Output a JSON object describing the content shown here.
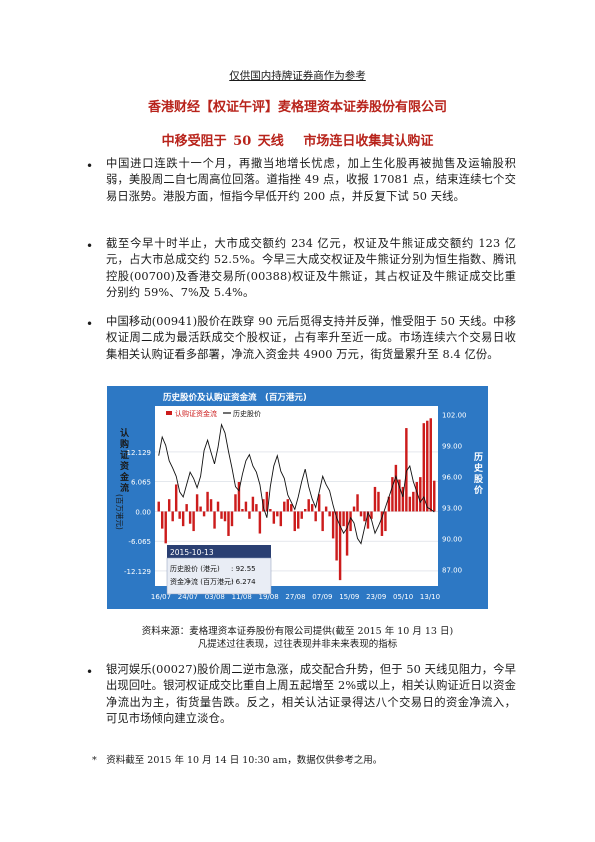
{
  "header": {
    "notice": "仅供国内持牌证券商作为参考",
    "title": "香港财经【权证午评】麦格理资本证券股份有限公司",
    "subtitle": "中移受阻于 50 天线　 市场连日收集其认购证"
  },
  "paragraphs": [
    "中国进口连跌十一个月，再撒当地增长忧虑，加上生化股再被抛售及运输股积弱，美股周二自七周高位回落。道指挫 49 点，收报 17081 点，结束连续七个交易日涨势。港股方面，恒指今早低开约 200 点，并反复下试 50 天线。",
    "截至今早十时半止，大市成交额约 234 亿元，权证及牛熊证成交额约 123 亿元，占大市总成交约 52.5%。今早三大成交权证及牛熊证分别为恒生指数、腾讯控股(00700)及香港交易所(00388)权证及牛熊证，其占权证及牛熊证成交比重分别约 59%、7%及 5.4%。",
    "中国移动(00941)股价在跌穿 90 元后觅得支持并反弹，惟受阻于 50 天线。中移权证周二成为最活跃成交个股权证，占有率升至近一成。市场连续六个交易日收集相关认购证看多部署，净流入资金共 4900 万元，街货量累升至 8.4 亿份。",
    "银河娱乐(00027)股价周二逆市急涨，成交配合升势，但于 50 天线见阻力，今早出现回吐。银河权证成交比重自上周五起增至 2%或以上，相关认购证近日以资金净流出为主，街货量告跌。反之，相关认沽证录得达八个交易日的资金净流入，可见市场倾向建立淡仓。"
  ],
  "bullet_symbol": "•",
  "chart": {
    "header_title": "历史股价及认购证资金流　(百万港元)",
    "left_axis_label": "认购证资金流",
    "left_axis_unit": "(百万港元)",
    "right_axis_label": "历史股价",
    "legend": {
      "flow": "认购证资金流",
      "price": "历史股价"
    },
    "tooltip": {
      "date": "2015-10-13",
      "price_label": "历史股价 (港元)",
      "price_value": ": 92.55",
      "flow_label": "资金净流 (百万港元)",
      "flow_value": ": 6.274"
    }
  },
  "chart_data": {
    "type": "bar",
    "title": "历史股价及认购证资金流 (百万港元)",
    "y_left": {
      "label": "认购证资金流 (百万港元)",
      "range": [
        -15.2,
        21.5
      ],
      "ticks": [
        "12.129",
        "6.065",
        "0.00",
        "-6.065",
        "-12.129"
      ],
      "tick_values": [
        12.129,
        6.065,
        0,
        -6.065,
        -12.129
      ]
    },
    "y_right": {
      "label": "历史股价",
      "range": [
        85.4,
        102.8
      ],
      "ticks": [
        "102.00",
        "99.00",
        "96.00",
        "93.00",
        "90.00",
        "87.00"
      ],
      "tick_values": [
        102,
        99,
        96,
        93,
        90,
        87
      ]
    },
    "x_ticks": [
      "16/07",
      "24/07",
      "03/08",
      "11/08",
      "19/08",
      "27/08",
      "07/09",
      "15/09",
      "23/09",
      "05/10",
      "13/10"
    ],
    "series": [
      {
        "name": "认购证资金流",
        "type": "bar",
        "values": [
          2.0,
          -3.5,
          -6.5,
          2.5,
          -2.0,
          5.5,
          -1.5,
          -3.0,
          1.5,
          -2.5,
          -4.0,
          3.5,
          1.0,
          -1.0,
          4.0,
          2.5,
          -3.5,
          2.0,
          -1.5,
          -2.0,
          -5.0,
          -3.0,
          3.5,
          6.0,
          0.5,
          2.0,
          -1.5,
          3.0,
          1.5,
          -4.5,
          2.5,
          4.0,
          0.5,
          -2.5,
          -1.0,
          -3.0,
          2.0,
          2.5,
          1.5,
          -4.0,
          -3.5,
          -1.5,
          0.5,
          2.5,
          1.5,
          -2.0,
          3.5,
          -4.0,
          1.0,
          -1.0,
          -5.5,
          -10.0,
          -14.0,
          -3.0,
          -9.0,
          -4.0,
          1.0,
          3.5,
          -1.0,
          -2.0,
          -3.5,
          -1.5,
          5.0,
          4.0,
          -5.0,
          -4.0,
          3.0,
          7.0,
          9.5,
          6.5,
          5.0,
          17.0,
          3.0,
          4.0,
          6.0,
          7.0,
          18.0,
          18.5,
          19.0,
          6.27
        ]
      },
      {
        "name": "历史股价",
        "type": "line",
        "values": [
          98.0,
          99.8,
          99.0,
          97.5,
          96.8,
          96.0,
          94.5,
          94.0,
          95.2,
          96.4,
          95.8,
          94.9,
          96.0,
          98.5,
          99.5,
          98.3,
          97.2,
          98.8,
          101.0,
          100.2,
          98.4,
          96.8,
          95.0,
          94.6,
          96.2,
          97.5,
          98.1,
          97.0,
          96.4,
          95.2,
          93.0,
          92.0,
          95.0,
          97.0,
          98.0,
          96.5,
          95.8,
          94.2,
          93.5,
          92.8,
          94.0,
          95.5,
          96.7,
          95.0,
          93.8,
          93.0,
          94.5,
          96.0,
          95.2,
          94.6,
          93.2,
          92.0,
          91.2,
          90.5,
          91.0,
          92.0,
          91.5,
          90.0,
          89.5,
          91.0,
          92.5,
          91.8,
          90.5,
          91.2,
          92.0,
          93.0,
          94.0,
          95.0,
          96.0,
          95.0,
          94.0,
          96.5,
          97.0,
          95.5,
          94.5,
          93.5,
          94.0,
          93.0,
          92.8,
          92.55
        ]
      }
    ]
  },
  "captions": {
    "source": "资料来源：麦格理资本证券股份有限公司提供(截至 2015 年 10 月 13 日)",
    "disclaimer": "凡提述过往表现，过往表现并非未来表现的指标"
  },
  "footnote": "*　资料截至 2015 年 10 月 14 日 10:30 am，数据仅供参考之用。",
  "colors": {
    "title_red": "#b8231b",
    "chart_frame_blue": "#2d78c4",
    "bar_red": "#cc1c1c"
  }
}
